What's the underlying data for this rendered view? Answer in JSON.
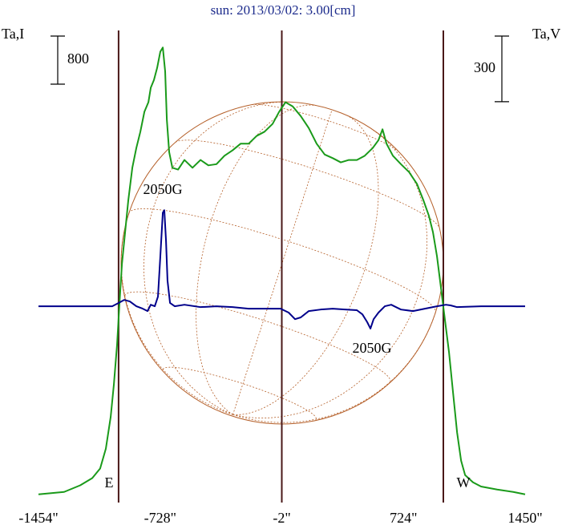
{
  "chart_data": {
    "type": "line",
    "title": "sun: 2013/03/02: 3.00[cm]",
    "y_label": "Ta,I",
    "y2_label": "Ta,V",
    "y_scale_bar": 800,
    "y2_scale_bar": 300,
    "xlim": [
      -1454,
      1450
    ],
    "xticks": [
      {
        "value": -1454,
        "label": "-1454\""
      },
      {
        "value": -728,
        "label": "-728\""
      },
      {
        "value": -2,
        "label": "-2\""
      },
      {
        "value": 724,
        "label": "724\""
      },
      {
        "value": 1450,
        "label": "1450\""
      }
    ],
    "ylim": [
      -110,
      7820
    ],
    "y2lim": [
      -890,
      1290
    ],
    "reference_lines": [
      -976,
      -2,
      962
    ],
    "reference_color": "#4a1818",
    "annotations": [
      "E",
      "W",
      "2050G",
      "2050G"
    ],
    "series": [
      {
        "name": "I",
        "color": "#1a9a1a",
        "x": [
          -1454,
          -1301,
          -1205,
          -1133,
          -1086,
          -1052,
          -1023,
          -1004,
          -985,
          -971,
          -956,
          -937,
          -918,
          -894,
          -870,
          -846,
          -822,
          -798,
          -784,
          -765,
          -746,
          -727,
          -712,
          -698,
          -688,
          -674,
          -655,
          -621,
          -583,
          -535,
          -487,
          -440,
          -392,
          -344,
          -296,
          -248,
          -200,
          -152,
          -105,
          -57,
          -18,
          20,
          63,
          111,
          159,
          206,
          254,
          302,
          350,
          398,
          446,
          493,
          541,
          575,
          599,
          623,
          661,
          709,
          757,
          805,
          843,
          876,
          900,
          924,
          948,
          972,
          996,
          1020,
          1044,
          1068,
          1092,
          1139,
          1187,
          1283,
          1379,
          1450
        ],
        "values": [
          0,
          40,
          150,
          270,
          430,
          760,
          1290,
          1830,
          2490,
          3160,
          3830,
          4360,
          4890,
          5430,
          5760,
          6030,
          6360,
          6520,
          6760,
          6890,
          7090,
          7360,
          7430,
          7030,
          6230,
          5690,
          5430,
          5400,
          5560,
          5430,
          5560,
          5470,
          5490,
          5630,
          5720,
          5830,
          5830,
          5960,
          6030,
          6160,
          6360,
          6520,
          6450,
          6290,
          6090,
          5830,
          5650,
          5590,
          5520,
          5560,
          5560,
          5630,
          5760,
          5890,
          6070,
          5830,
          5630,
          5490,
          5360,
          5160,
          4890,
          4630,
          4360,
          3960,
          3430,
          2890,
          2360,
          1690,
          1030,
          560,
          320,
          200,
          130,
          80,
          40,
          0
        ]
      },
      {
        "name": "V",
        "color": "#00008b",
        "axis": "y2",
        "x": [
          -1454,
          -1014,
          -976,
          -942,
          -909,
          -870,
          -832,
          -803,
          -784,
          -760,
          -741,
          -727,
          -712,
          -703,
          -693,
          -684,
          -669,
          -641,
          -583,
          -487,
          -392,
          -296,
          -200,
          -105,
          -9,
          39,
          77,
          111,
          159,
          230,
          302,
          374,
          446,
          479,
          508,
          527,
          546,
          575,
          613,
          651,
          709,
          781,
          852,
          924,
          977,
          1005,
          1044,
          1187,
          1450
        ],
        "values": [
          0,
          0,
          15,
          29,
          22,
          0,
          -11,
          -22,
          7,
          0,
          44,
          227,
          428,
          439,
          300,
          117,
          15,
          0,
          7,
          -4,
          0,
          -4,
          -11,
          -11,
          -11,
          -29,
          -59,
          -51,
          -22,
          -15,
          -11,
          -15,
          -18,
          -37,
          -73,
          -102,
          -59,
          -29,
          0,
          7,
          -15,
          -22,
          -11,
          0,
          7,
          4,
          -4,
          0,
          0
        ]
      }
    ]
  }
}
